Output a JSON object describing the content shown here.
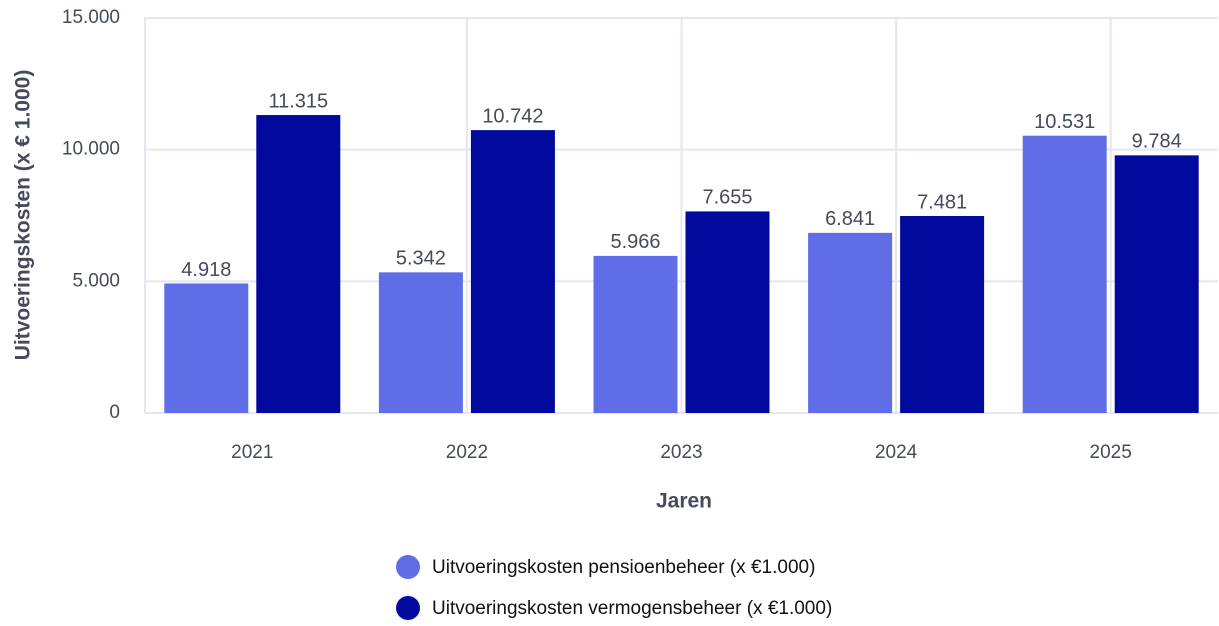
{
  "chart_data": {
    "type": "bar",
    "x_label": "Jaren",
    "y_label": "Uitvoeringskosten (x € 1.000)",
    "categories": [
      "2021",
      "2022",
      "2023",
      "2024",
      "2025"
    ],
    "series": [
      {
        "name": "Uitvoeringskosten pensioenbeheer (x €1.000)",
        "color": "#5f6ee6",
        "values": [
          4918,
          5342,
          5966,
          6841,
          10531
        ],
        "value_labels": [
          "4.918",
          "5.342",
          "5.966",
          "6.841",
          "10.531"
        ]
      },
      {
        "name": "Uitvoeringskosten vermogensbeheer (x €1.000)",
        "color": "#020a9e",
        "values": [
          11315,
          10742,
          7655,
          7481,
          9784
        ],
        "value_labels": [
          "11.315",
          "10.742",
          "7.655",
          "7.481",
          "9.784"
        ]
      }
    ],
    "ylim": [
      0,
      15000
    ],
    "yticks": [
      0,
      {
        "value": 5000,
        "label": "5.000"
      },
      {
        "value": 10000,
        "label": "10.000"
      },
      {
        "value": 15000,
        "label": "15.000"
      }
    ],
    "grid": true,
    "legend": "bottom"
  }
}
